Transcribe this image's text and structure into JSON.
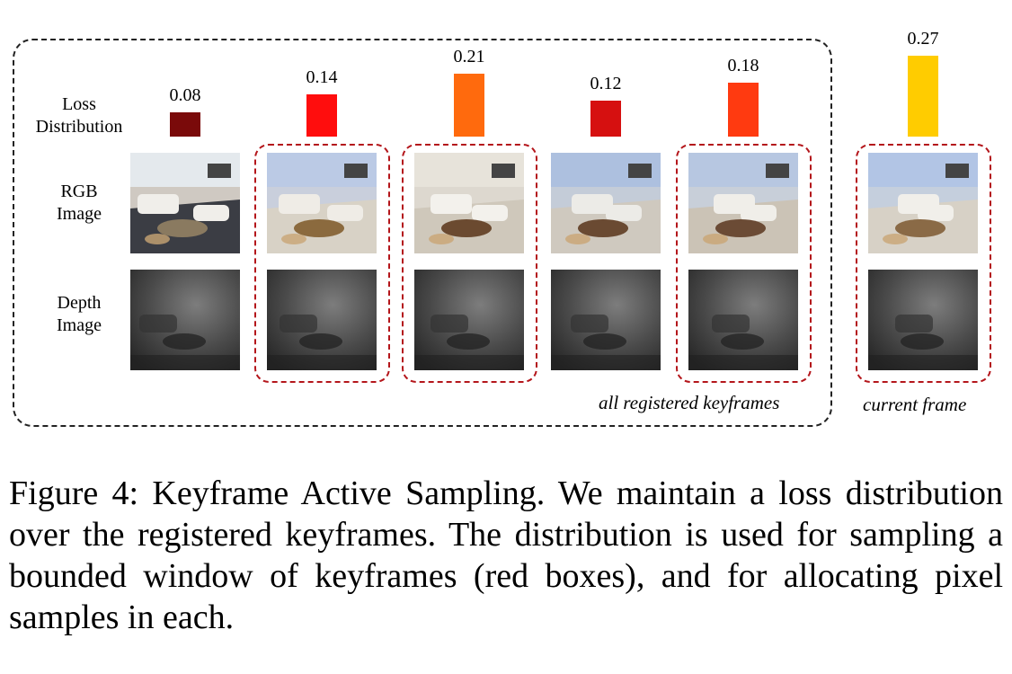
{
  "row_labels": {
    "loss": [
      "Loss",
      "Distribution"
    ],
    "rgb": [
      "RGB",
      "Image"
    ],
    "depth": [
      "Depth",
      "Image"
    ]
  },
  "frames": [
    {
      "loss": "0.08",
      "loss_value": 0.08,
      "color": "#7a0a0a",
      "selected": false,
      "scene": 0,
      "depth": 0
    },
    {
      "loss": "0.14",
      "loss_value": 0.14,
      "color": "#ff0d0d",
      "selected": true,
      "scene": 1,
      "depth": 1
    },
    {
      "loss": "0.21",
      "loss_value": 0.21,
      "color": "#ff6a0d",
      "selected": true,
      "scene": 2,
      "depth": 2
    },
    {
      "loss": "0.12",
      "loss_value": 0.12,
      "color": "#d61010",
      "selected": false,
      "scene": 3,
      "depth": 3
    },
    {
      "loss": "0.18",
      "loss_value": 0.18,
      "color": "#ff3a10",
      "selected": true,
      "scene": 4,
      "depth": 4
    }
  ],
  "current_frame": {
    "loss": "0.27",
    "loss_value": 0.27,
    "color": "#ffcc00",
    "selected": true
  },
  "labels": {
    "keyframes": "all registered keyframes",
    "current": "current frame"
  },
  "caption": "Figure 4: Keyframe Active Sampling. We maintain a loss distribution over the registered keyframes. The distribution is used for sampling a bounded window of keyframes (red boxes), and for allocating pixel samples in each."
}
